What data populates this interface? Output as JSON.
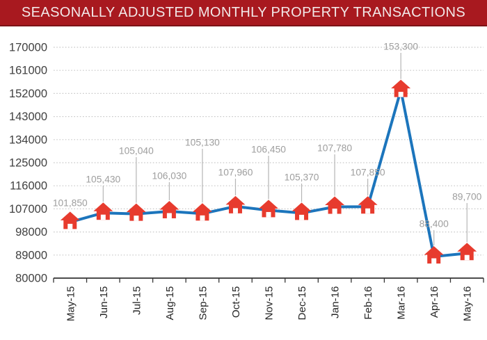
{
  "header": {
    "title": "SEASONALLY ADJUSTED MONTHLY PROPERTY TRANSACTIONS"
  },
  "colors": {
    "banner_background": "#a8191f",
    "banner_border": "#7c1216",
    "banner_text": "#f2e8e8",
    "line": "#1c75bc",
    "marker": "#e73b2e",
    "marker_door": "#ffffff",
    "gridline": "#c8c8c8",
    "axis": "#333333",
    "y_tick_label": "#414141",
    "x_tick_label": "#262626",
    "data_label": "#9e9e9e",
    "leader_line": "#b5b5b5",
    "background": "#ffffff"
  },
  "chart_data": {
    "type": "line",
    "title": "SEASONALLY ADJUSTED MONTHLY PROPERTY TRANSACTIONS",
    "categories": [
      "May-15",
      "Jun-15",
      "Jul-15",
      "Aug-15",
      "Sep-15",
      "Oct-15",
      "Nov-15",
      "Dec-15",
      "Jan-16",
      "Feb-16",
      "Mar-16",
      "Apr-16",
      "May-16"
    ],
    "values": [
      101850,
      105430,
      105040,
      106030,
      105130,
      107960,
      106450,
      105370,
      107780,
      107850,
      153300,
      88400,
      89700
    ],
    "point_labels": [
      "101,850",
      "105,430",
      "105,040",
      "106,030",
      "105,130",
      "107,960",
      "106,450",
      "105,370",
      "107,780",
      "107,850",
      "153,300",
      "88,400",
      "89,700"
    ],
    "yticks": [
      80000,
      89000,
      98000,
      107000,
      116000,
      125000,
      134000,
      143000,
      152000,
      161000,
      170000
    ],
    "ylim": [
      80000,
      170000
    ],
    "xlabel": "",
    "ylabel": "",
    "grid": "horizontal-dotted",
    "legend": "none",
    "marker_style": "house-icon",
    "x_label_rotation": -90
  }
}
